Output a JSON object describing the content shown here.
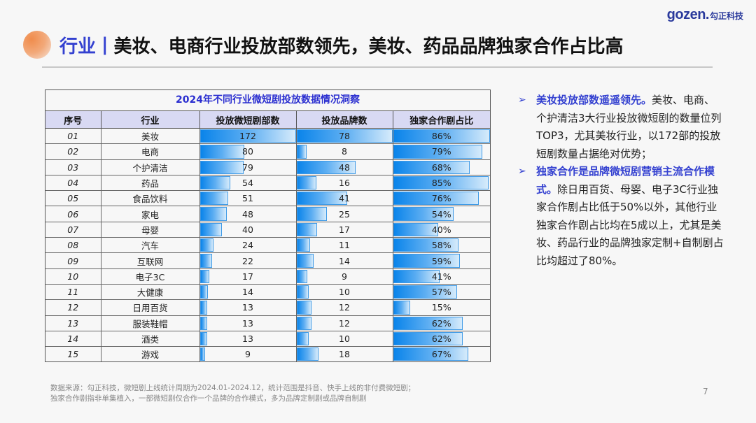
{
  "logo": {
    "word": "gozen.",
    "cn": "勾正科技"
  },
  "header": {
    "tag": "行业",
    "separator": "|",
    "title": "美妆、电商行业投放部数领先，美妆、药品品牌独家合作占比高"
  },
  "table": {
    "title": "2024年不同行业微短剧投放数据情况洞察",
    "columns": [
      "序号",
      "行业",
      "投放微短剧部数",
      "投放品牌数",
      "独家合作剧占比"
    ],
    "rows": [
      {
        "idx": "01",
        "industry": "美妆",
        "dramas": "172",
        "brands": "78",
        "exclusive": "86%"
      },
      {
        "idx": "02",
        "industry": "电商",
        "dramas": "80",
        "brands": "8",
        "exclusive": "79%"
      },
      {
        "idx": "03",
        "industry": "个护清洁",
        "dramas": "79",
        "brands": "48",
        "exclusive": "68%"
      },
      {
        "idx": "04",
        "industry": "药品",
        "dramas": "54",
        "brands": "16",
        "exclusive": "85%"
      },
      {
        "idx": "05",
        "industry": "食品饮料",
        "dramas": "51",
        "brands": "41",
        "exclusive": "76%"
      },
      {
        "idx": "06",
        "industry": "家电",
        "dramas": "48",
        "brands": "25",
        "exclusive": "54%"
      },
      {
        "idx": "07",
        "industry": "母婴",
        "dramas": "40",
        "brands": "17",
        "exclusive": "40%"
      },
      {
        "idx": "08",
        "industry": "汽车",
        "dramas": "24",
        "brands": "11",
        "exclusive": "58%"
      },
      {
        "idx": "09",
        "industry": "互联网",
        "dramas": "22",
        "brands": "14",
        "exclusive": "59%"
      },
      {
        "idx": "10",
        "industry": "电子3C",
        "dramas": "17",
        "brands": "9",
        "exclusive": "41%"
      },
      {
        "idx": "11",
        "industry": "大健康",
        "dramas": "14",
        "brands": "10",
        "exclusive": "57%"
      },
      {
        "idx": "12",
        "industry": "日用百货",
        "dramas": "13",
        "brands": "12",
        "exclusive": "15%"
      },
      {
        "idx": "13",
        "industry": "服装鞋帽",
        "dramas": "13",
        "brands": "12",
        "exclusive": "62%"
      },
      {
        "idx": "14",
        "industry": "酒类",
        "dramas": "13",
        "brands": "10",
        "exclusive": "62%"
      },
      {
        "idx": "15",
        "industry": "游戏",
        "dramas": "9",
        "brands": "18",
        "exclusive": "67%"
      }
    ],
    "bar_color_start": "#0a84ea",
    "bar_color_end": "#d6ebfb",
    "header_bg": "#d8d9f3",
    "title_color": "#2a2ed0"
  },
  "notes": [
    {
      "arrow": "➢",
      "highlight": "美妆投放部数遥遥领先。",
      "text": "美妆、电商、个护清洁3大行业投放微短剧的数量位列TOP3，尤其美妆行业，以172部的投放短剧数量占据绝对优势；"
    },
    {
      "arrow": "➢",
      "highlight": "独家合作是品牌微短剧营销主流合作模式。",
      "text": "除日用百货、母婴、电子3C行业独家合作剧占比低于50%以外，其他行业独家合作剧占比均在5成以上，尤其是美妆、药品行业的品牌独家定制+自制剧占比均超过了80%。"
    }
  ],
  "footer": {
    "source_line1": "数据来源：勾正科技，微短剧上线统计周期为2024.01-2024.12，统计范围是抖音、快手上线的非付费微短剧；",
    "source_line2": "独家合作剧指非单集植入，一部微短剧仅合作一个品牌的合作模式，多为品牌定制剧或品牌自制剧",
    "page_number": "7"
  },
  "accent_color": "#3340d0"
}
